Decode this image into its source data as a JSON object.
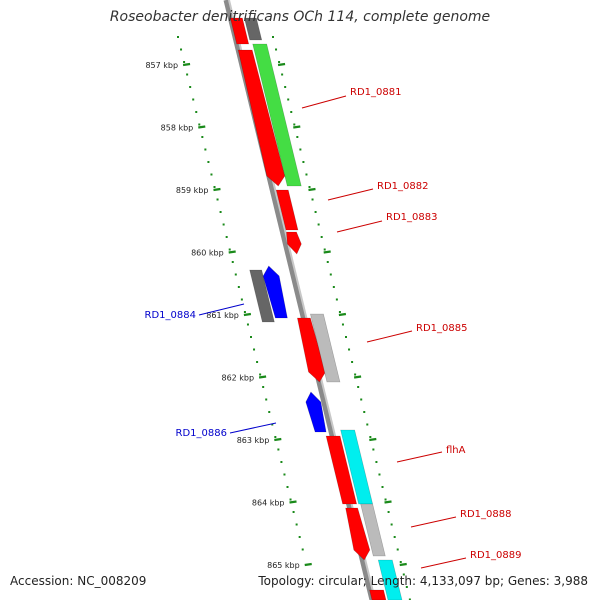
{
  "title": "Roseobacter denitrificans OCh 114, complete genome",
  "footer": {
    "accession": "Accession: NC_008209",
    "summary": "Topology: circular; Length: 4,133,097 bp; Genes: 3,988"
  },
  "colors": {
    "backbone": "#8a8a8a",
    "ruler": "#1a8a1a",
    "forward_label": "#cc0000",
    "reverse_label": "#0000cc",
    "red": "#ff0000",
    "green": "#44dd44",
    "cyan": "#00eeee",
    "gray": "#bbbbbb",
    "dark_gray": "#666666",
    "blue": "#0000ff"
  },
  "ruler": {
    "unit": "kbp",
    "tick_labels": [
      "857 kbp",
      "858 kbp",
      "859 kbp",
      "860 kbp",
      "861 kbp",
      "862 kbp",
      "863 kbp",
      "864 kbp",
      "865 kbp"
    ]
  },
  "gene_labels": [
    {
      "name": "RD1_0881",
      "color": "forward_label"
    },
    {
      "name": "RD1_0882",
      "color": "forward_label"
    },
    {
      "name": "RD1_0883",
      "color": "forward_label"
    },
    {
      "name": "RD1_0884",
      "color": "reverse_label"
    },
    {
      "name": "RD1_0885",
      "color": "forward_label"
    },
    {
      "name": "RD1_0886",
      "color": "reverse_label"
    },
    {
      "name": "flhA",
      "color": "forward_label"
    },
    {
      "name": "RD1_0888",
      "color": "forward_label"
    },
    {
      "name": "RD1_0889",
      "color": "forward_label"
    }
  ]
}
